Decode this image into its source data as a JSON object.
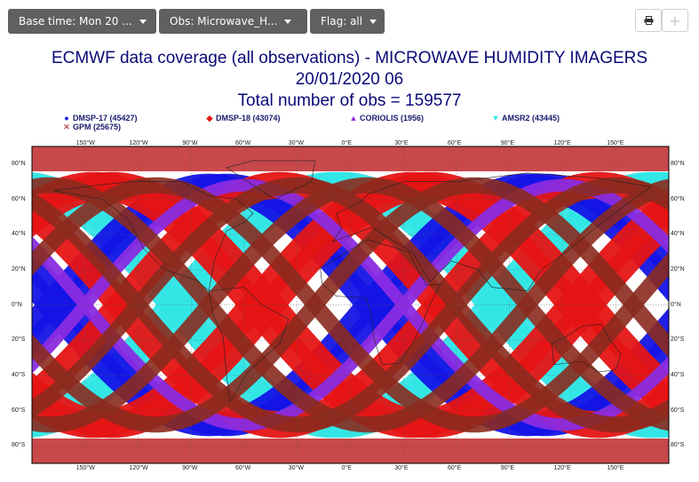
{
  "toolbar": {
    "base_time_label": "Base time: Mon 20 ...",
    "obs_label": "Obs: Microwave_H...",
    "flag_label": "Flag: all",
    "print_icon": "printer-icon",
    "plus_label": "+"
  },
  "chart": {
    "title_line1": "ECMWF data coverage (all observations) - MICROWAVE HUMIDITY IMAGERS",
    "title_line2": "20/01/2020 06",
    "title_line3": "Total number of obs = 159577",
    "legend": [
      {
        "label": "DMSP-17 (45427)",
        "color": "#1414e6",
        "symbol": "●"
      },
      {
        "label": "DMSP-18 (43074)",
        "color": "#e61414",
        "symbol": "◆"
      },
      {
        "label": "CORIOLIS (1956)",
        "color": "#8a2be2",
        "symbol": "▲"
      },
      {
        "label": "AMSR2 (43445)",
        "color": "#33e6e6",
        "symbol": "▼"
      },
      {
        "label": "GPM (25675)",
        "color": "#b05050",
        "symbol": "✕"
      }
    ],
    "lon_ticks": [
      "150°W",
      "120°W",
      "90°W",
      "60°W",
      "30°W",
      "0°E",
      "30°E",
      "60°E",
      "90°E",
      "120°E",
      "150°E"
    ],
    "lat_ticks_left": [
      "80°N",
      "60°N",
      "40°N",
      "20°N",
      "0°N",
      "20°S",
      "40°S",
      "60°S",
      "80°S"
    ],
    "lat_ticks_right": [
      "80°N",
      "60°N",
      "40°N",
      "20°N",
      "0°N",
      "20°S",
      "40°S",
      "60°S",
      "80°S"
    ]
  }
}
